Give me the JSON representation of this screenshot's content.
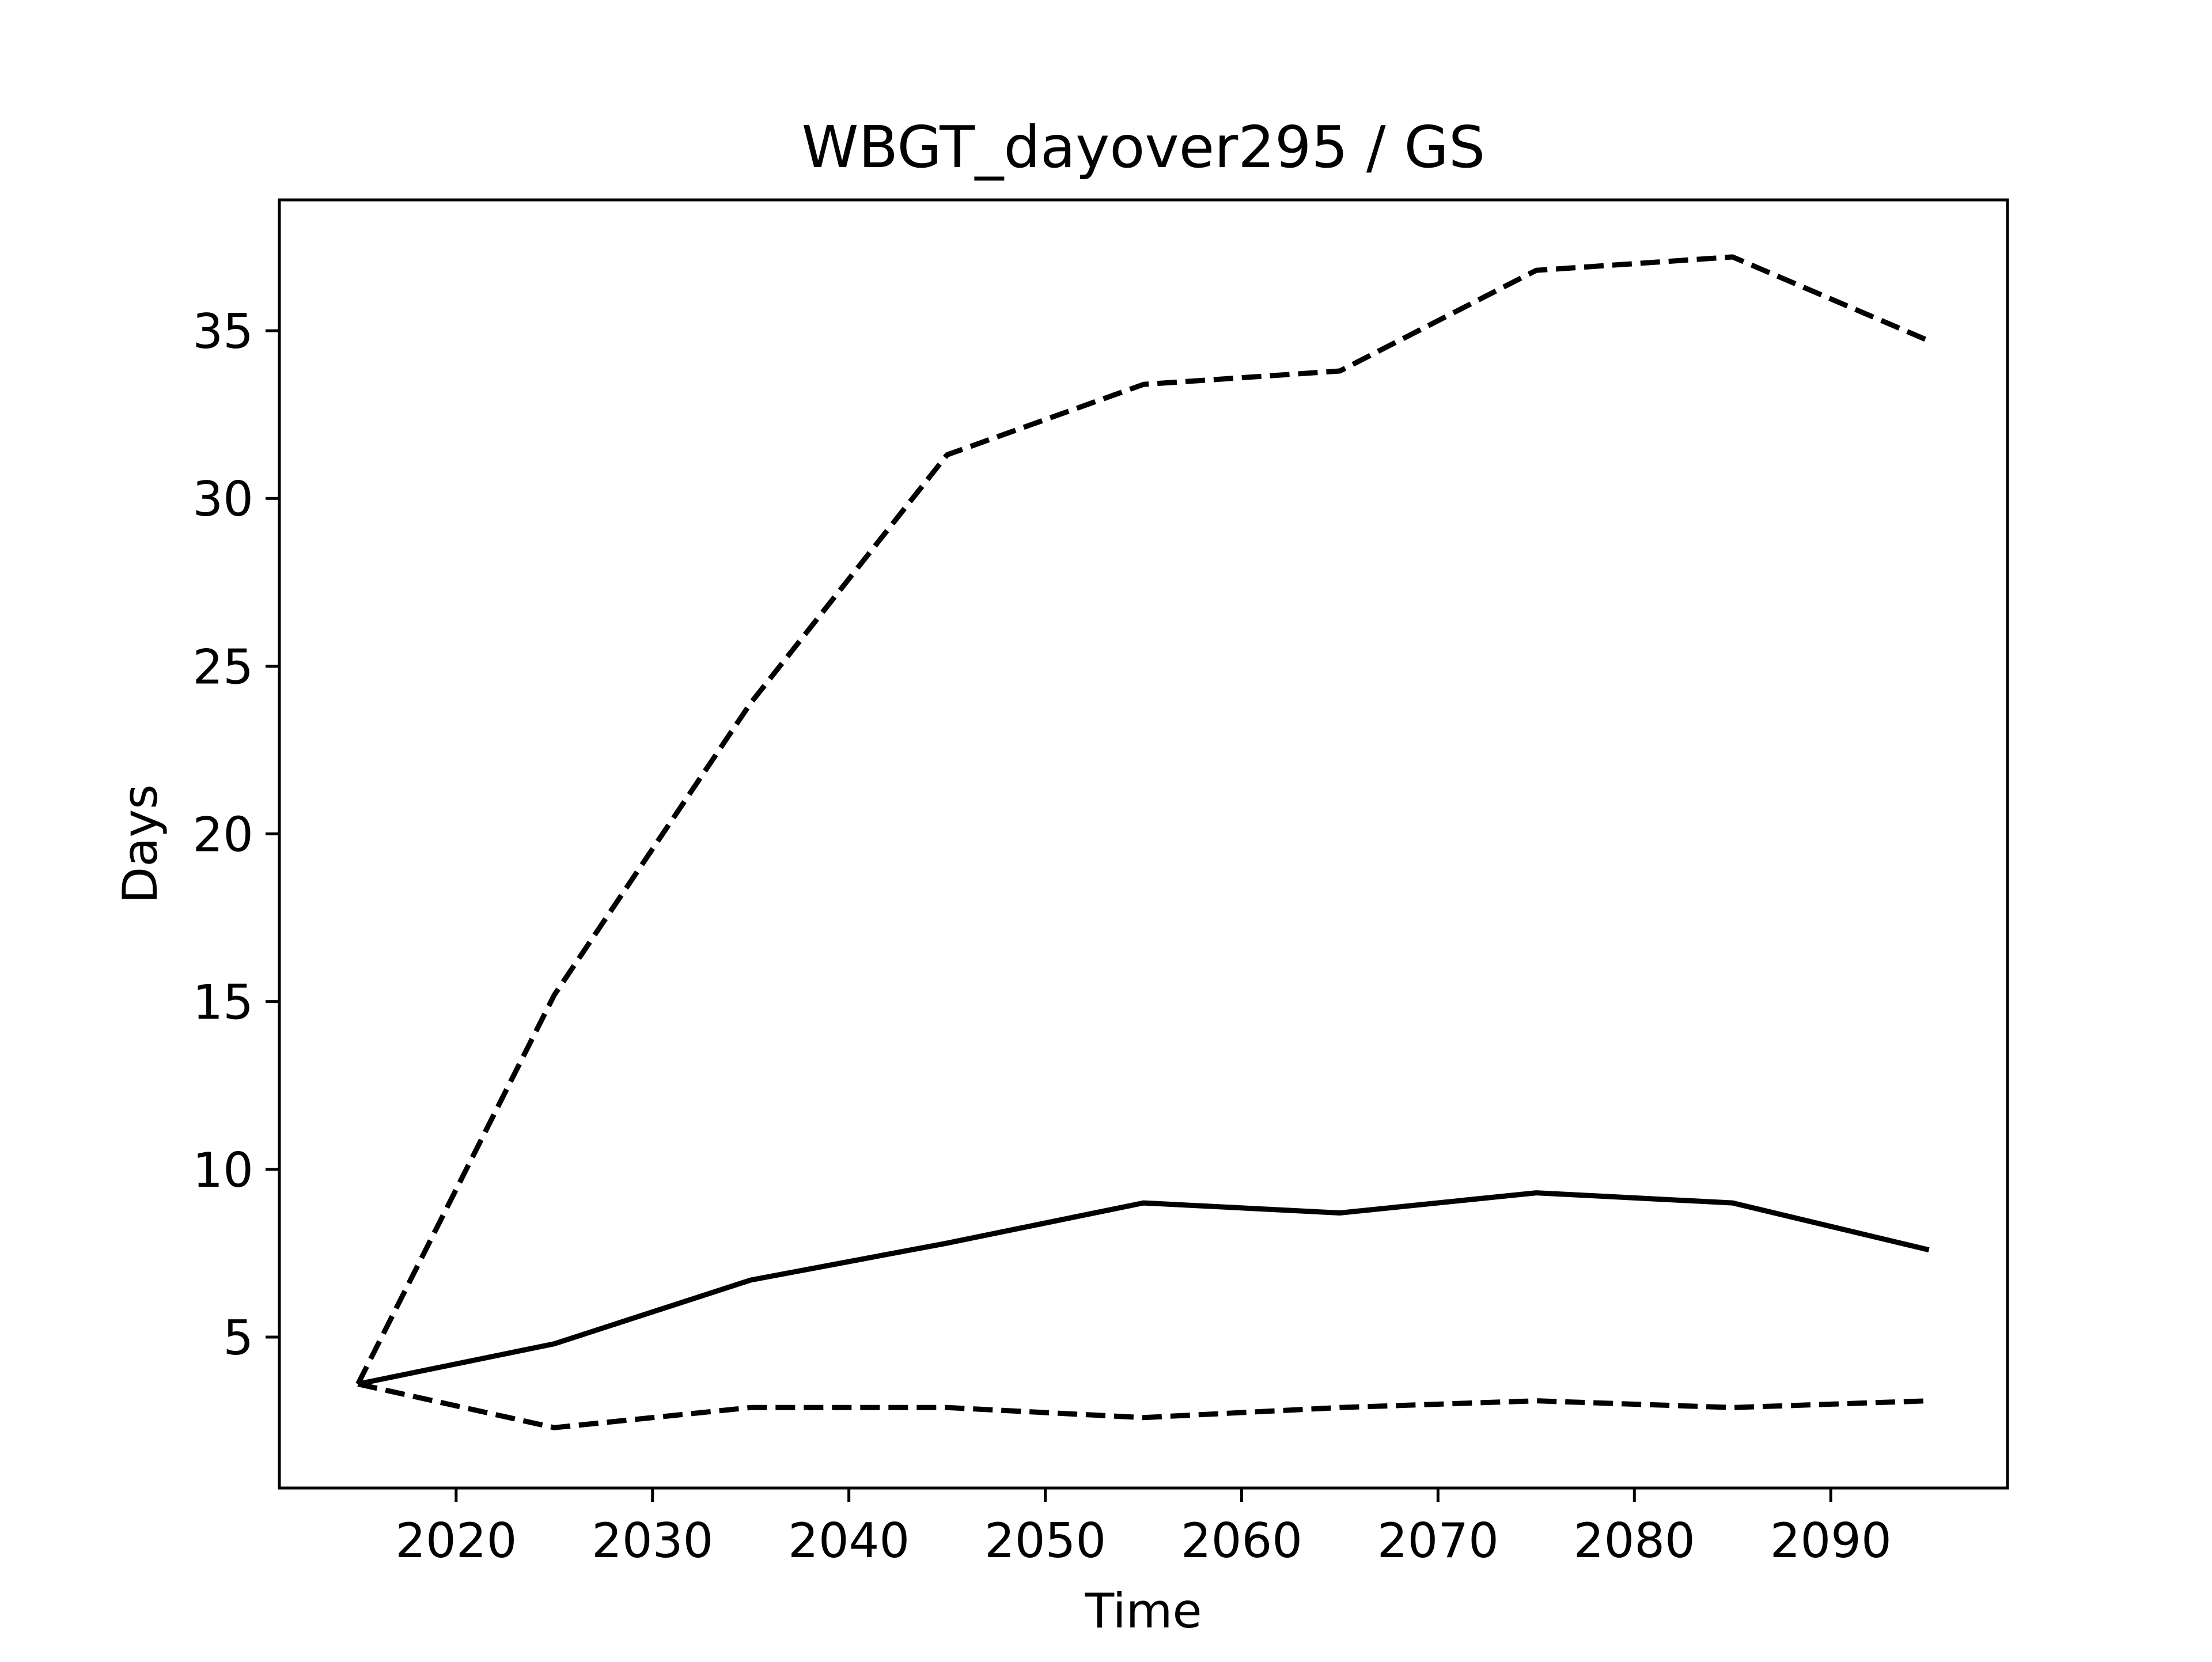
{
  "chart_data": {
    "type": "line",
    "title": "WBGT_dayover295 / GS",
    "xlabel": "Time",
    "ylabel": "Days",
    "xlim": [
      2011,
      2099
    ],
    "ylim": [
      0.5,
      38.9
    ],
    "xticks": [
      2020,
      2030,
      2040,
      2050,
      2060,
      2070,
      2080,
      2090
    ],
    "yticks": [
      5,
      10,
      15,
      20,
      25,
      30,
      35
    ],
    "grid": false,
    "legend": "none",
    "x": [
      2015,
      2025,
      2035,
      2045,
      2055,
      2065,
      2075,
      2085,
      2095
    ],
    "series": [
      {
        "style": "dashed",
        "color": "#000000",
        "values": [
          3.6,
          15.2,
          23.9,
          31.3,
          33.4,
          33.8,
          36.8,
          37.2,
          34.7
        ]
      },
      {
        "style": "solid",
        "color": "#000000",
        "values": [
          3.6,
          4.8,
          6.7,
          7.8,
          9.0,
          8.7,
          9.3,
          9.0,
          7.6
        ]
      },
      {
        "style": "dashed",
        "color": "#000000",
        "values": [
          3.6,
          2.3,
          2.9,
          2.9,
          2.6,
          2.9,
          3.1,
          2.9,
          3.1
        ]
      }
    ]
  }
}
